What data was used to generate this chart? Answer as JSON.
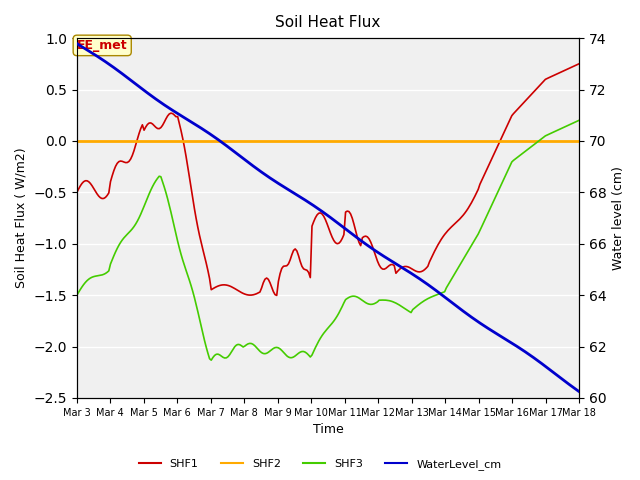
{
  "title": "Soil Heat Flux",
  "xlabel": "Time",
  "ylabel_left": "Soil Heat Flux ( W/m2)",
  "ylabel_right": "Water level (cm)",
  "ylim_left": [
    -2.5,
    1.0
  ],
  "ylim_right": [
    60,
    74
  ],
  "x_start": 3,
  "x_end": 18,
  "x_ticks": [
    3,
    4,
    5,
    6,
    7,
    8,
    9,
    10,
    11,
    12,
    13,
    14,
    15,
    16,
    17,
    18
  ],
  "x_tick_labels": [
    "Mar 3",
    "Mar 4",
    "Mar 5",
    "Mar 6",
    "Mar 7",
    "Mar 8",
    "Mar 9",
    "Mar 10",
    "Mar 11",
    "Mar 12",
    "Mar 13",
    "Mar 14",
    "Mar 15",
    "Mar 16",
    "Mar 17",
    "Mar 18"
  ],
  "y_ticks_left": [
    -2.5,
    -2.0,
    -1.5,
    -1.0,
    -0.5,
    0.0,
    0.5,
    1.0
  ],
  "y_ticks_right": [
    60,
    62,
    64,
    66,
    68,
    70,
    72,
    74
  ],
  "shf1_color": "#cc0000",
  "shf2_color": "#ffaa00",
  "shf3_color": "#44cc00",
  "water_color": "#0000cc",
  "bg_color": "#e8e8e8",
  "plot_bg_color": "#f0f0f0",
  "annotation_text": "EE_met",
  "annotation_color": "#cc0000",
  "annotation_bg": "#ffffcc",
  "grid_color": "#ffffff",
  "legend_labels": [
    "SHF1",
    "SHF2",
    "SHF3",
    "WaterLevel_cm"
  ]
}
